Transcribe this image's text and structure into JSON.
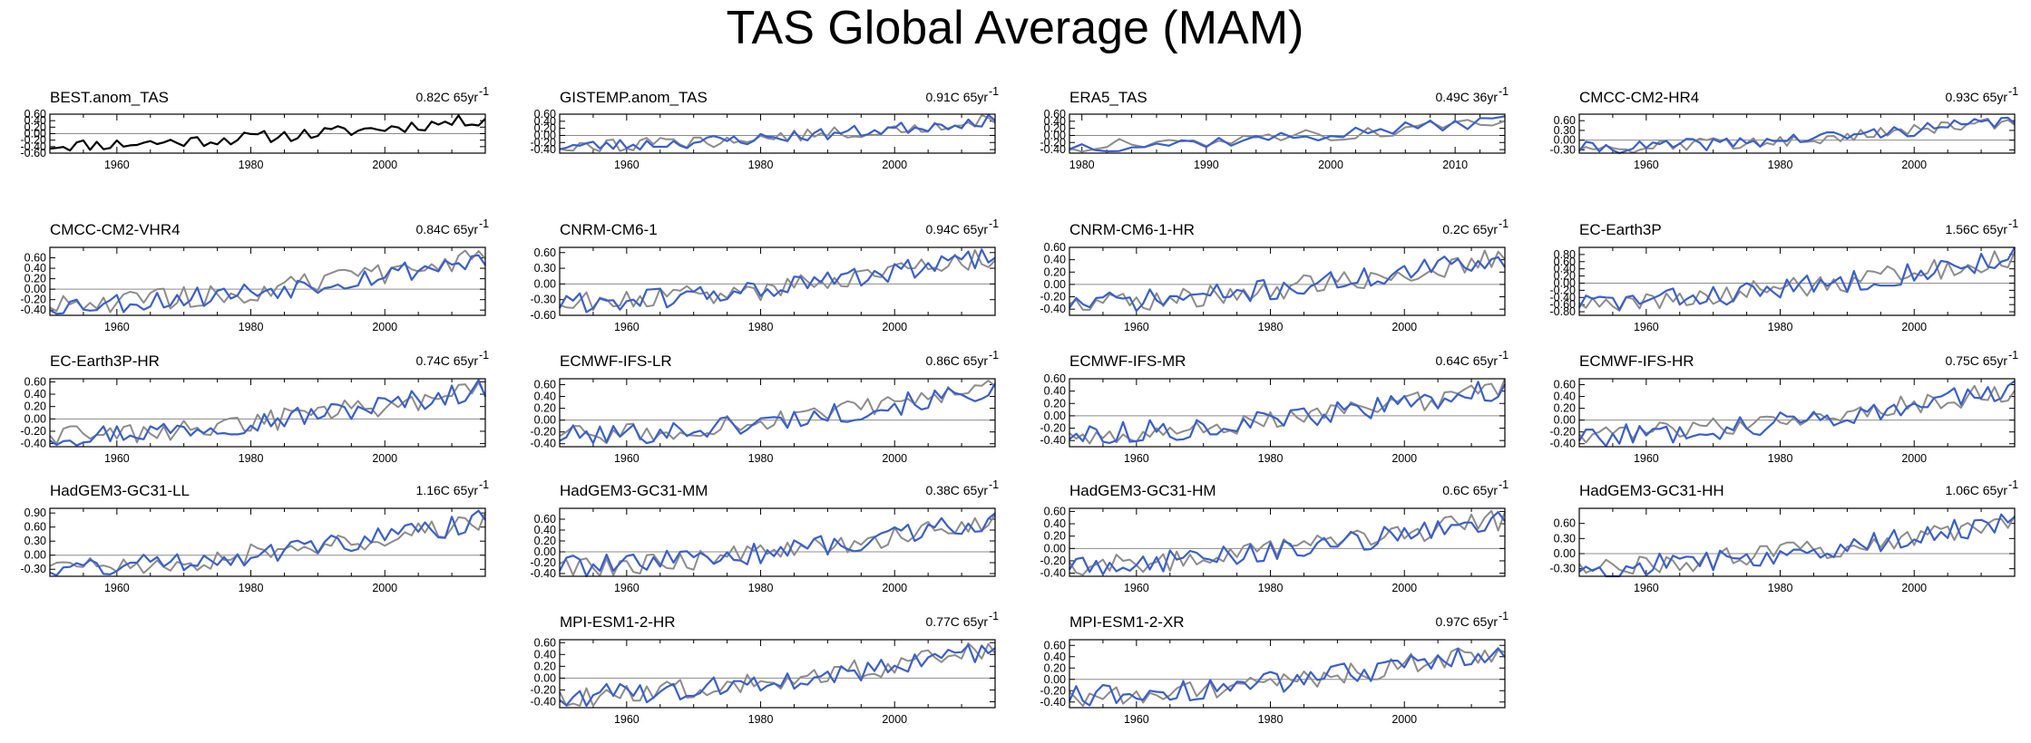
{
  "title": "TAS Global Average (MAM)",
  "colors": {
    "model": "#3a5fcd",
    "reference": "#8c8c8c",
    "observation": "#000000"
  },
  "chart_data": [
    {
      "type": "line",
      "title": "BEST.anom_TAS",
      "trend": "0.82C 65yr",
      "trend_sup": "-1",
      "x_range": [
        1950,
        2015
      ],
      "xticks": [
        1960,
        1980,
        2000
      ],
      "ylim": [
        -0.6,
        0.6
      ],
      "yticks": [
        "0.60",
        "0.40",
        "0.20",
        "0.00",
        "-0.20",
        "-0.40",
        "-0.60"
      ],
      "single_color": true,
      "seed": 11
    },
    {
      "type": "line",
      "title": "GISTEMP.anom_TAS",
      "trend": "0.91C 65yr",
      "trend_sup": "-1",
      "x_range": [
        1950,
        2015
      ],
      "xticks": [
        1960,
        1980,
        2000
      ],
      "ylim": [
        -0.5,
        0.6
      ],
      "yticks": [
        "0.60",
        "0.40",
        "0.20",
        "0.00",
        "-0.20",
        "-0.40"
      ],
      "seed": 23
    },
    {
      "type": "line",
      "title": "ERA5_TAS",
      "trend": "0.49C 36yr",
      "trend_sup": "-1",
      "x_range": [
        1979,
        2014
      ],
      "xticks": [
        1980,
        1990,
        2000,
        2010
      ],
      "ylim": [
        -0.5,
        0.6
      ],
      "yticks": [
        "0.60",
        "0.40",
        "0.20",
        "0.00",
        "-0.20",
        "-0.40"
      ],
      "seed": 37
    },
    {
      "type": "line",
      "title": "CMCC-CM2-HR4",
      "trend": "0.93C 65yr",
      "trend_sup": "-1",
      "x_range": [
        1950,
        2015
      ],
      "xticks": [
        1960,
        1980,
        2000
      ],
      "ylim": [
        -0.4,
        0.8
      ],
      "yticks": [
        "0.60",
        "0.30",
        "0.00",
        "-0.30"
      ],
      "seed": 41
    },
    {
      "type": "line",
      "title": "CMCC-CM2-VHR4",
      "trend": "0.84C 65yr",
      "trend_sup": "-1",
      "x_range": [
        1950,
        2015
      ],
      "xticks": [
        1960,
        1980,
        2000
      ],
      "ylim": [
        -0.5,
        0.8
      ],
      "yticks": [
        "0.60",
        "0.40",
        "0.20",
        "0.00",
        "-0.20",
        "-0.40"
      ],
      "seed": 53
    },
    {
      "type": "line",
      "title": "CNRM-CM6-1",
      "trend": "0.94C 65yr",
      "trend_sup": "-1",
      "x_range": [
        1950,
        2015
      ],
      "xticks": [
        1960,
        1980,
        2000
      ],
      "ylim": [
        -0.6,
        0.7
      ],
      "yticks": [
        "0.60",
        "0.30",
        "0.00",
        "-0.30",
        "-0.60"
      ],
      "seed": 61
    },
    {
      "type": "line",
      "title": "CNRM-CM6-1-HR",
      "trend": "0.2C 65yr",
      "trend_sup": "-1",
      "x_range": [
        1950,
        2015
      ],
      "xticks": [
        1960,
        1980,
        2000
      ],
      "ylim": [
        -0.5,
        0.6
      ],
      "yticks": [
        "0.60",
        "0.40",
        "0.20",
        "0.00",
        "-0.20",
        "-0.40"
      ],
      "seed": 71
    },
    {
      "type": "line",
      "title": "EC-Earth3P",
      "trend": "1.56C 65yr",
      "trend_sup": "-1",
      "x_range": [
        1950,
        2015
      ],
      "xticks": [
        1960,
        1980,
        2000
      ],
      "ylim": [
        -0.9,
        1.0
      ],
      "yticks": [
        "0.80",
        "0.60",
        "0.40",
        "0.20",
        "0.00",
        "-0.20",
        "-0.40",
        "-0.60",
        "-0.80"
      ],
      "seed": 83
    },
    {
      "type": "line",
      "title": "EC-Earth3P-HR",
      "trend": "0.74C 65yr",
      "trend_sup": "-1",
      "x_range": [
        1950,
        2015
      ],
      "xticks": [
        1960,
        1980,
        2000
      ],
      "ylim": [
        -0.45,
        0.65
      ],
      "yticks": [
        "0.60",
        "0.40",
        "0.20",
        "0.00",
        "-0.20",
        "-0.40"
      ],
      "seed": 97
    },
    {
      "type": "line",
      "title": "ECMWF-IFS-LR",
      "trend": "0.86C 65yr",
      "trend_sup": "-1",
      "x_range": [
        1950,
        2015
      ],
      "xticks": [
        1960,
        1980,
        2000
      ],
      "ylim": [
        -0.45,
        0.7
      ],
      "yticks": [
        "0.60",
        "0.40",
        "0.20",
        "0.00",
        "-0.20",
        "-0.40"
      ],
      "seed": 101
    },
    {
      "type": "line",
      "title": "ECMWF-IFS-MR",
      "trend": "0.64C 65yr",
      "trend_sup": "-1",
      "x_range": [
        1950,
        2015
      ],
      "xticks": [
        1960,
        1980,
        2000
      ],
      "ylim": [
        -0.5,
        0.6
      ],
      "yticks": [
        "0.60",
        "0.40",
        "0.20",
        "0.00",
        "-0.20",
        "-0.40"
      ],
      "seed": 113
    },
    {
      "type": "line",
      "title": "ECMWF-IFS-HR",
      "trend": "0.75C 65yr",
      "trend_sup": "-1",
      "x_range": [
        1950,
        2015
      ],
      "xticks": [
        1960,
        1980,
        2000
      ],
      "ylim": [
        -0.45,
        0.7
      ],
      "yticks": [
        "0.60",
        "0.40",
        "0.20",
        "0.00",
        "-0.20",
        "-0.40"
      ],
      "seed": 127
    },
    {
      "type": "line",
      "title": "HadGEM3-GC31-LL",
      "trend": "1.16C 65yr",
      "trend_sup": "-1",
      "x_range": [
        1950,
        2015
      ],
      "xticks": [
        1960,
        1980,
        2000
      ],
      "ylim": [
        -0.45,
        1.0
      ],
      "yticks": [
        "0.90",
        "0.60",
        "0.30",
        "0.00",
        "-0.30"
      ],
      "seed": 131
    },
    {
      "type": "line",
      "title": "HadGEM3-GC31-MM",
      "trend": "0.38C 65yr",
      "trend_sup": "-1",
      "x_range": [
        1950,
        2015
      ],
      "xticks": [
        1960,
        1980,
        2000
      ],
      "ylim": [
        -0.45,
        0.8
      ],
      "yticks": [
        "0.60",
        "0.40",
        "0.20",
        "0.00",
        "-0.20",
        "-0.40"
      ],
      "seed": 139
    },
    {
      "type": "line",
      "title": "HadGEM3-GC31-HM",
      "trend": "0.6C 65yr",
      "trend_sup": "-1",
      "x_range": [
        1950,
        2015
      ],
      "xticks": [
        1960,
        1980,
        2000
      ],
      "ylim": [
        -0.45,
        0.65
      ],
      "yticks": [
        "0.60",
        "0.40",
        "0.20",
        "0.00",
        "-0.20",
        "-0.40"
      ],
      "seed": 149
    },
    {
      "type": "line",
      "title": "HadGEM3-GC31-HH",
      "trend": "1.06C 65yr",
      "trend_sup": "-1",
      "x_range": [
        1950,
        2015
      ],
      "xticks": [
        1960,
        1980,
        2000
      ],
      "ylim": [
        -0.45,
        0.9
      ],
      "yticks": [
        "0.60",
        "0.30",
        "0.00",
        "-0.30"
      ],
      "seed": 157
    },
    {
      "type": "line",
      "title": "MPI-ESM1-2-HR",
      "trend": "0.77C 65yr",
      "trend_sup": "-1",
      "x_range": [
        1950,
        2015
      ],
      "xticks": [
        1960,
        1980,
        2000
      ],
      "ylim": [
        -0.5,
        0.65
      ],
      "yticks": [
        "0.60",
        "0.40",
        "0.20",
        "0.00",
        "-0.20",
        "-0.40"
      ],
      "seed": 163
    },
    {
      "type": "line",
      "title": "MPI-ESM1-2-XR",
      "trend": "0.97C 65yr",
      "trend_sup": "-1",
      "x_range": [
        1950,
        2015
      ],
      "xticks": [
        1960,
        1980,
        2000
      ],
      "ylim": [
        -0.5,
        0.7
      ],
      "yticks": [
        "0.60",
        "0.40",
        "0.20",
        "0.00",
        "-0.20",
        "-0.40"
      ],
      "seed": 173
    }
  ]
}
